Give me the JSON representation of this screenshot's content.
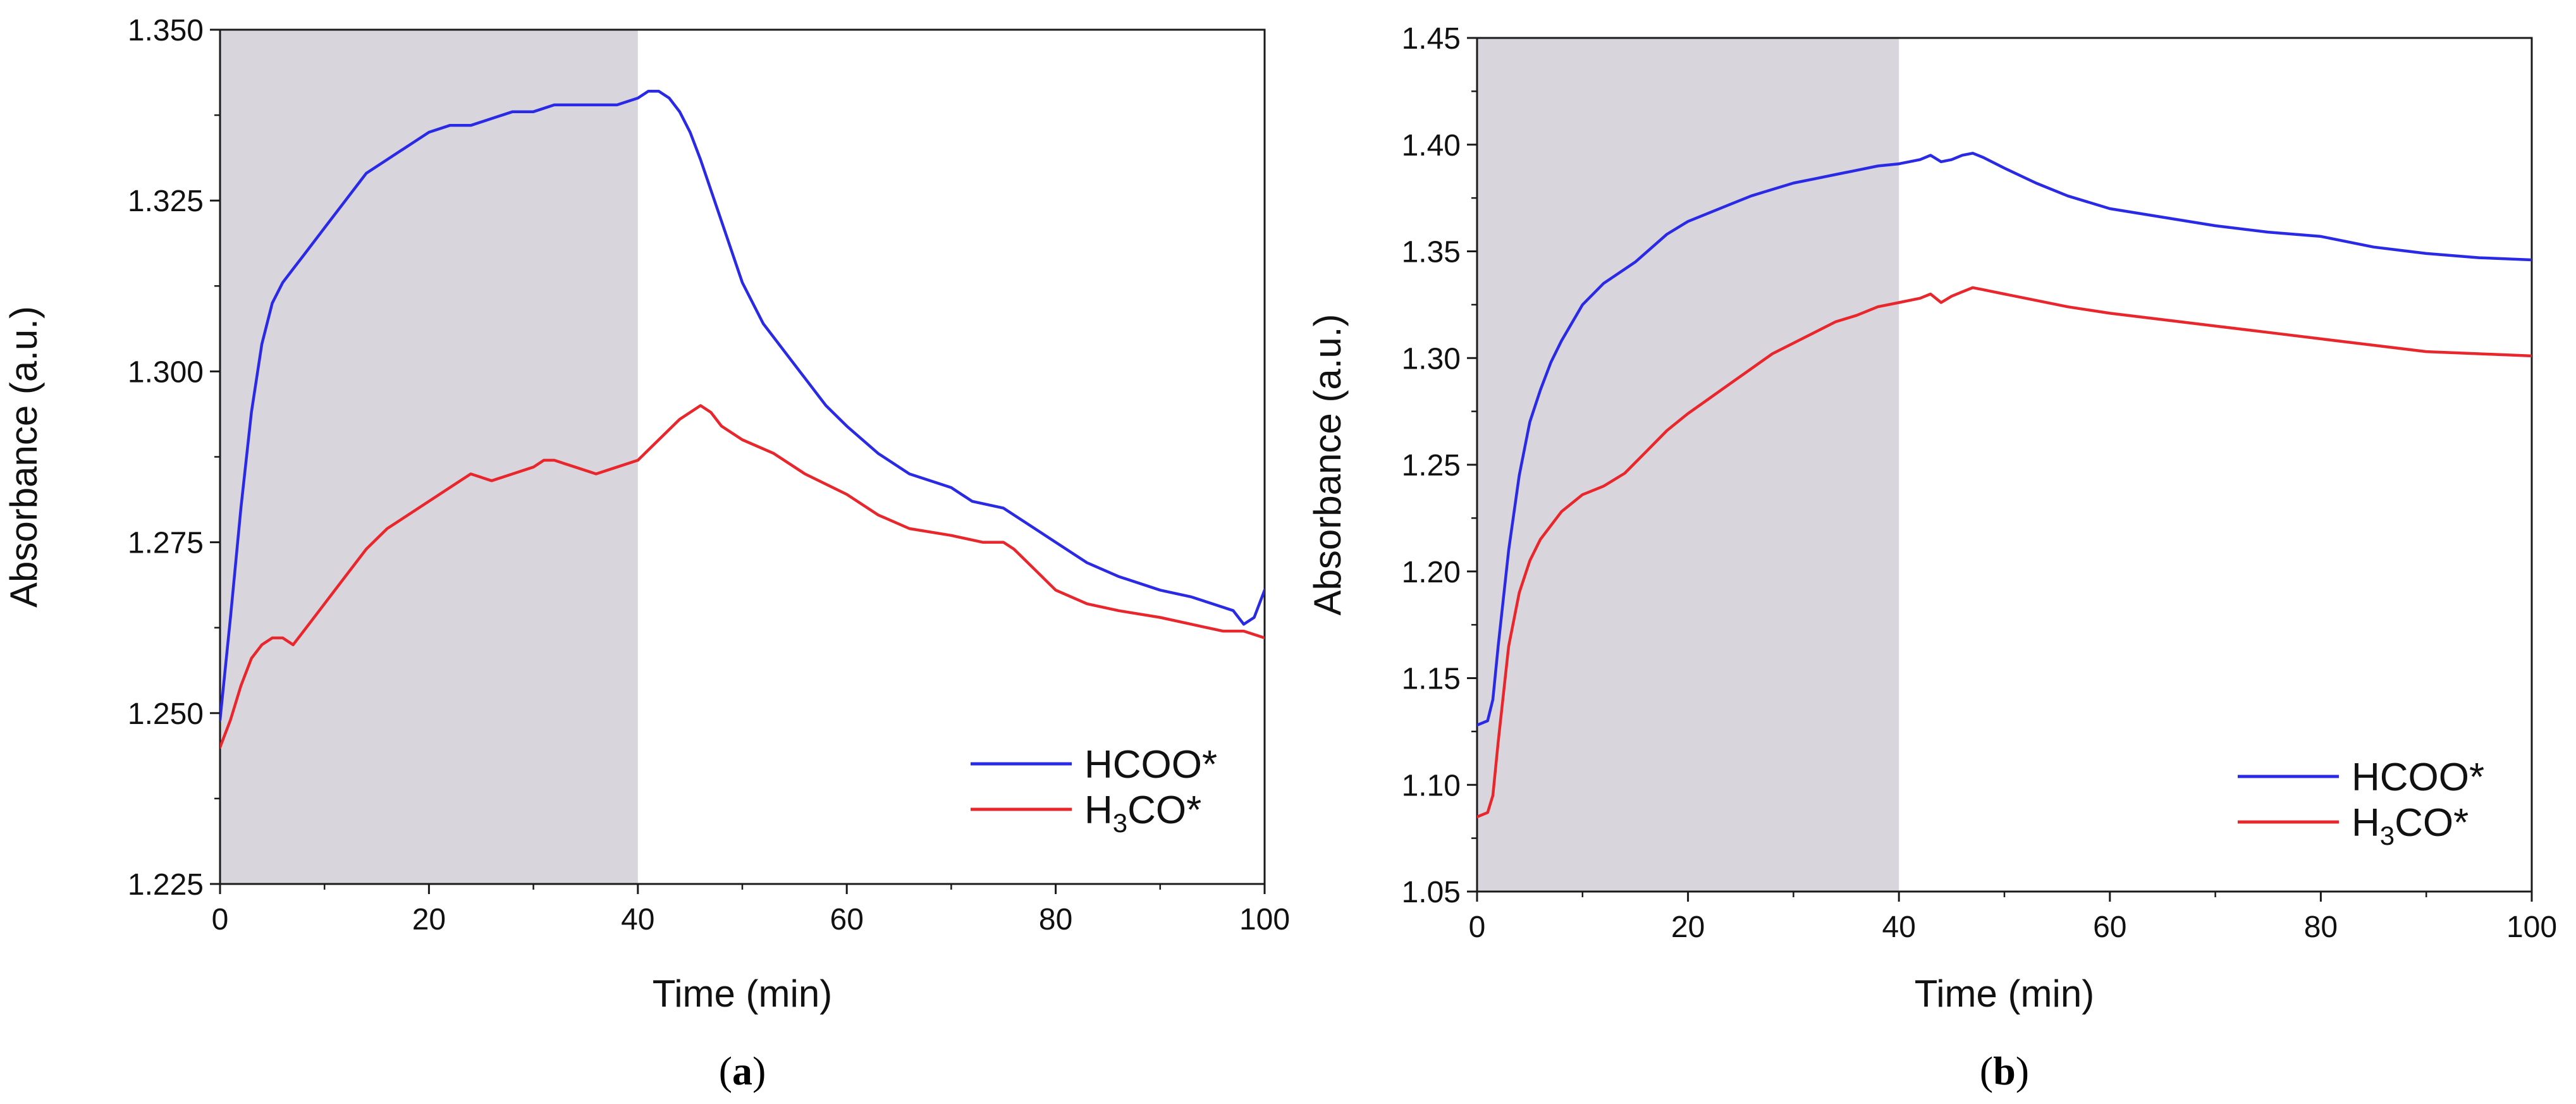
{
  "chart_data": [
    {
      "type": "line",
      "panel": "a",
      "caption": {
        "open": "(",
        "letter": "a",
        "close": ")"
      },
      "xlabel": "Time (min)",
      "ylabel": "Absorbance (a.u.)",
      "xlim": [
        0,
        100
      ],
      "ylim": [
        1.225,
        1.35
      ],
      "xticks": [
        0,
        20,
        40,
        60,
        80,
        100
      ],
      "yticks": [
        1.225,
        1.25,
        1.275,
        1.3,
        1.325,
        1.35
      ],
      "ytick_decimals": 3,
      "shaded_region": {
        "x_start": 0,
        "x_end": 40,
        "color": "#d9d5dc"
      },
      "legend_position": "bottom-right",
      "series": [
        {
          "name": "HCOO*",
          "name_base": "HCOO*",
          "color": "#2a2ae6",
          "x": [
            0,
            1,
            2,
            3,
            4,
            5,
            6,
            7,
            8,
            10,
            12,
            14,
            16,
            18,
            20,
            22,
            24,
            26,
            28,
            30,
            32,
            34,
            36,
            38,
            40,
            41,
            42,
            43,
            44,
            45,
            46,
            48,
            50,
            52,
            55,
            58,
            60,
            63,
            66,
            70,
            72,
            75,
            78,
            80,
            83,
            86,
            90,
            93,
            95,
            97,
            98,
            99,
            100
          ],
          "y": [
            1.249,
            1.264,
            1.28,
            1.294,
            1.304,
            1.31,
            1.313,
            1.315,
            1.317,
            1.321,
            1.325,
            1.329,
            1.331,
            1.333,
            1.335,
            1.336,
            1.336,
            1.337,
            1.338,
            1.338,
            1.339,
            1.339,
            1.339,
            1.339,
            1.34,
            1.341,
            1.341,
            1.34,
            1.338,
            1.335,
            1.331,
            1.322,
            1.313,
            1.307,
            1.301,
            1.295,
            1.292,
            1.288,
            1.285,
            1.283,
            1.281,
            1.28,
            1.277,
            1.275,
            1.272,
            1.27,
            1.268,
            1.267,
            1.266,
            1.265,
            1.263,
            1.264,
            1.268
          ]
        },
        {
          "name": "H3CO*",
          "name_base": "H",
          "name_sub": "3",
          "name_rest": "CO*",
          "color": "#e8262b",
          "x": [
            0,
            1,
            2,
            3,
            4,
            5,
            6,
            7,
            8,
            10,
            12,
            14,
            16,
            18,
            20,
            22,
            24,
            26,
            28,
            30,
            31,
            32,
            34,
            36,
            38,
            40,
            42,
            44,
            45,
            46,
            47,
            48,
            50,
            53,
            56,
            60,
            63,
            66,
            70,
            73,
            75,
            76,
            78,
            80,
            83,
            86,
            90,
            93,
            96,
            98,
            100
          ],
          "y": [
            1.245,
            1.249,
            1.254,
            1.258,
            1.26,
            1.261,
            1.261,
            1.26,
            1.262,
            1.266,
            1.27,
            1.274,
            1.277,
            1.279,
            1.281,
            1.283,
            1.285,
            1.284,
            1.285,
            1.286,
            1.287,
            1.287,
            1.286,
            1.285,
            1.286,
            1.287,
            1.29,
            1.293,
            1.294,
            1.295,
            1.294,
            1.292,
            1.29,
            1.288,
            1.285,
            1.282,
            1.279,
            1.277,
            1.276,
            1.275,
            1.275,
            1.274,
            1.271,
            1.268,
            1.266,
            1.265,
            1.264,
            1.263,
            1.262,
            1.262,
            1.261
          ]
        }
      ]
    },
    {
      "type": "line",
      "panel": "b",
      "caption": {
        "open": "(",
        "letter": "b",
        "close": ")"
      },
      "xlabel": "Time (min)",
      "ylabel": "Absorbance (a.u.)",
      "xlim": [
        0,
        100
      ],
      "ylim": [
        1.05,
        1.45
      ],
      "xticks": [
        0,
        20,
        40,
        60,
        80,
        100
      ],
      "yticks": [
        1.05,
        1.1,
        1.15,
        1.2,
        1.25,
        1.3,
        1.35,
        1.4,
        1.45
      ],
      "ytick_decimals": 2,
      "shaded_region": {
        "x_start": 0,
        "x_end": 40,
        "color": "#d9d5dc"
      },
      "legend_position": "bottom-right",
      "series": [
        {
          "name": "HCOO*",
          "name_base": "HCOO*",
          "color": "#2a2ae6",
          "x": [
            0,
            1,
            1.5,
            2,
            3,
            4,
            5,
            6,
            7,
            8,
            10,
            12,
            15,
            18,
            20,
            22,
            24,
            26,
            28,
            30,
            32,
            34,
            36,
            38,
            40,
            42,
            43,
            44,
            45,
            46,
            47,
            48,
            50,
            53,
            56,
            60,
            65,
            70,
            75,
            80,
            85,
            90,
            95,
            100
          ],
          "y": [
            1.128,
            1.13,
            1.14,
            1.165,
            1.21,
            1.245,
            1.27,
            1.285,
            1.298,
            1.308,
            1.325,
            1.335,
            1.345,
            1.358,
            1.364,
            1.368,
            1.372,
            1.376,
            1.379,
            1.382,
            1.384,
            1.386,
            1.388,
            1.39,
            1.391,
            1.393,
            1.395,
            1.392,
            1.393,
            1.395,
            1.396,
            1.394,
            1.389,
            1.382,
            1.376,
            1.37,
            1.366,
            1.362,
            1.359,
            1.357,
            1.352,
            1.349,
            1.347,
            1.346
          ]
        },
        {
          "name": "H3CO*",
          "name_base": "H",
          "name_sub": "3",
          "name_rest": "CO*",
          "color": "#e8262b",
          "x": [
            0,
            1,
            1.5,
            2,
            3,
            4,
            5,
            6,
            8,
            10,
            12,
            14,
            16,
            18,
            20,
            22,
            24,
            26,
            28,
            30,
            32,
            34,
            36,
            38,
            40,
            42,
            43,
            44,
            45,
            46,
            47,
            48,
            50,
            53,
            56,
            60,
            65,
            70,
            75,
            80,
            85,
            90,
            95,
            100
          ],
          "y": [
            1.085,
            1.087,
            1.095,
            1.12,
            1.165,
            1.19,
            1.205,
            1.215,
            1.228,
            1.236,
            1.24,
            1.246,
            1.256,
            1.266,
            1.274,
            1.281,
            1.288,
            1.295,
            1.302,
            1.307,
            1.312,
            1.317,
            1.32,
            1.324,
            1.326,
            1.328,
            1.33,
            1.326,
            1.329,
            1.331,
            1.333,
            1.332,
            1.33,
            1.327,
            1.324,
            1.321,
            1.318,
            1.315,
            1.312,
            1.309,
            1.306,
            1.303,
            1.302,
            1.301
          ]
        }
      ]
    }
  ]
}
